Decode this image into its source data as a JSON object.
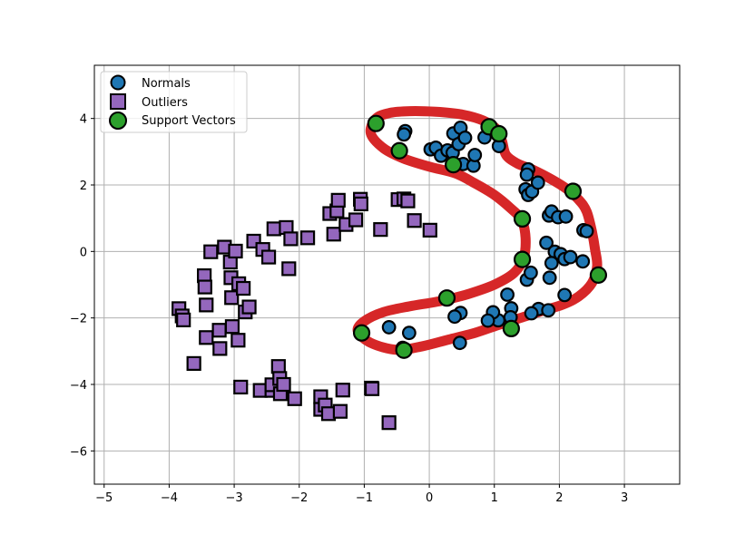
{
  "chart_data": {
    "type": "scatter",
    "title": "",
    "xlabel": "",
    "ylabel": "",
    "xlim": [
      -5.15,
      3.85
    ],
    "ylim": [
      -7.0,
      5.6
    ],
    "xticks": [
      -5,
      -4,
      -3,
      -2,
      -1,
      0,
      1,
      2,
      3
    ],
    "yticks": [
      -6,
      -4,
      -2,
      0,
      2,
      4
    ],
    "xtick_labels": [
      "−5",
      "−4",
      "−3",
      "−2",
      "−1",
      "0",
      "1",
      "2",
      "3"
    ],
    "ytick_labels": [
      "−6",
      "−4",
      "−2",
      "0",
      "2",
      "4"
    ],
    "grid": true,
    "legend": {
      "position": "top-left",
      "entries": [
        "Normals",
        "Outliers",
        "Support Vectors"
      ]
    },
    "colors": {
      "normals": "#1f77b4",
      "outliers": "#9467bd",
      "support_vectors": "#2ca02c",
      "boundary": "#d62728",
      "edge": "#000000",
      "grid": "#b0b0b0"
    },
    "series": [
      {
        "name": "Normals",
        "marker": "circle",
        "points": [
          [
            -0.37,
            3.62
          ],
          [
            -0.39,
            3.52
          ],
          [
            0.02,
            3.07
          ],
          [
            0.1,
            3.12
          ],
          [
            0.18,
            2.88
          ],
          [
            0.28,
            3.04
          ],
          [
            0.36,
            2.97
          ],
          [
            0.37,
            3.55
          ],
          [
            0.45,
            3.23
          ],
          [
            0.48,
            3.72
          ],
          [
            0.55,
            3.42
          ],
          [
            0.52,
            2.63
          ],
          [
            0.68,
            2.58
          ],
          [
            0.7,
            2.9
          ],
          [
            0.85,
            3.43
          ],
          [
            1.07,
            3.17
          ],
          [
            1.52,
            2.47
          ],
          [
            1.5,
            2.31
          ],
          [
            1.48,
            1.87
          ],
          [
            1.52,
            1.7
          ],
          [
            1.58,
            1.8
          ],
          [
            1.67,
            2.07
          ],
          [
            1.8,
            0.26
          ],
          [
            1.84,
            1.08
          ],
          [
            1.88,
            1.2
          ],
          [
            1.93,
            -0.01
          ],
          [
            1.98,
            1.03
          ],
          [
            2.02,
            -0.08
          ],
          [
            2.1,
            1.05
          ],
          [
            2.08,
            -0.23
          ],
          [
            2.17,
            -0.17
          ],
          [
            2.36,
            -0.3
          ],
          [
            2.37,
            0.64
          ],
          [
            2.42,
            0.61
          ],
          [
            1.5,
            -0.85
          ],
          [
            1.56,
            -0.64
          ],
          [
            1.85,
            -0.79
          ],
          [
            1.88,
            -0.35
          ],
          [
            2.08,
            -1.31
          ],
          [
            1.2,
            -1.3
          ],
          [
            1.26,
            -1.71
          ],
          [
            1.68,
            -1.73
          ],
          [
            1.83,
            -1.77
          ],
          [
            1.57,
            -1.86
          ],
          [
            1.25,
            -1.98
          ],
          [
            1.06,
            -2.07
          ],
          [
            0.98,
            -1.83
          ],
          [
            0.9,
            -2.08
          ],
          [
            0.48,
            -1.85
          ],
          [
            0.39,
            -1.96
          ],
          [
            0.47,
            -2.75
          ],
          [
            -0.62,
            -2.28
          ],
          [
            -0.31,
            -2.45
          ],
          [
            -0.41,
            -2.9
          ]
        ]
      },
      {
        "name": "Outliers",
        "marker": "square",
        "points": [
          [
            -3.85,
            -1.72
          ],
          [
            -3.8,
            -1.94
          ],
          [
            -3.78,
            -2.06
          ],
          [
            -3.62,
            -3.37
          ],
          [
            -3.43,
            -1.61
          ],
          [
            -3.43,
            -2.59
          ],
          [
            -3.46,
            -0.73
          ],
          [
            -3.45,
            -1.07
          ],
          [
            -3.36,
            -0.01
          ],
          [
            -3.23,
            -2.37
          ],
          [
            -3.22,
            -2.92
          ],
          [
            -3.15,
            0.13
          ],
          [
            -3.06,
            -0.32
          ],
          [
            -3.05,
            -0.79
          ],
          [
            -3.04,
            -1.39
          ],
          [
            -3.03,
            -2.26
          ],
          [
            -2.98,
            0.01
          ],
          [
            -2.93,
            -0.97
          ],
          [
            -2.94,
            -2.67
          ],
          [
            -2.9,
            -4.08
          ],
          [
            -2.86,
            -1.11
          ],
          [
            -2.83,
            -1.82
          ],
          [
            -2.77,
            -1.67
          ],
          [
            -2.7,
            0.31
          ],
          [
            -2.6,
            -4.18
          ],
          [
            -2.56,
            0.06
          ],
          [
            -2.47,
            -0.17
          ],
          [
            -2.42,
            -4.18
          ],
          [
            -2.42,
            -4.01
          ],
          [
            -2.39,
            0.68
          ],
          [
            -2.32,
            -3.46
          ],
          [
            -2.3,
            -3.82
          ],
          [
            -2.29,
            -4.28
          ],
          [
            -2.24,
            -4.0
          ],
          [
            -2.2,
            0.72
          ],
          [
            -2.16,
            -0.52
          ],
          [
            -2.13,
            0.38
          ],
          [
            -2.07,
            -4.43
          ],
          [
            -1.87,
            0.41
          ],
          [
            -1.67,
            -4.37
          ],
          [
            -1.67,
            -4.75
          ],
          [
            -1.6,
            -4.62
          ],
          [
            -1.55,
            -4.88
          ],
          [
            -1.53,
            1.14
          ],
          [
            -1.47,
            0.52
          ],
          [
            -1.42,
            1.22
          ],
          [
            -1.4,
            1.54
          ],
          [
            -1.37,
            -4.81
          ],
          [
            -1.33,
            -4.17
          ],
          [
            -1.28,
            0.81
          ],
          [
            -1.13,
            0.95
          ],
          [
            -1.06,
            1.57
          ],
          [
            -1.05,
            1.43
          ],
          [
            -0.89,
            -4.11
          ],
          [
            -0.88,
            -4.13
          ],
          [
            -0.75,
            0.66
          ],
          [
            -0.62,
            -5.15
          ],
          [
            -0.48,
            1.56
          ],
          [
            -0.39,
            1.58
          ],
          [
            -0.33,
            1.52
          ],
          [
            -0.23,
            0.93
          ],
          [
            0.01,
            0.64
          ]
        ]
      },
      {
        "name": "Support Vectors",
        "marker": "circle",
        "points": [
          [
            -0.82,
            3.85
          ],
          [
            -0.46,
            3.03
          ],
          [
            0.37,
            2.61
          ],
          [
            0.92,
            3.75
          ],
          [
            1.07,
            3.54
          ],
          [
            2.21,
            1.81
          ],
          [
            1.43,
            0.98
          ],
          [
            1.43,
            -0.24
          ],
          [
            2.6,
            -0.71
          ],
          [
            0.27,
            -1.4
          ],
          [
            1.26,
            -2.32
          ],
          [
            -1.04,
            -2.45
          ],
          [
            -0.39,
            -2.97
          ]
        ]
      }
    ],
    "boundary": [
      [
        -0.82,
        4.0
      ],
      [
        -0.6,
        4.17
      ],
      [
        -0.3,
        4.22
      ],
      [
        0.1,
        4.2
      ],
      [
        0.5,
        4.12
      ],
      [
        0.85,
        3.92
      ],
      [
        1.05,
        3.65
      ],
      [
        1.12,
        3.3
      ],
      [
        1.18,
        2.9
      ],
      [
        1.35,
        2.65
      ],
      [
        1.6,
        2.45
      ],
      [
        1.85,
        2.2
      ],
      [
        2.1,
        1.9
      ],
      [
        2.3,
        1.55
      ],
      [
        2.42,
        1.2
      ],
      [
        2.5,
        0.6
      ],
      [
        2.55,
        0.05
      ],
      [
        2.58,
        -0.45
      ],
      [
        2.5,
        -0.95
      ],
      [
        2.3,
        -1.35
      ],
      [
        2.05,
        -1.6
      ],
      [
        1.75,
        -1.78
      ],
      [
        1.4,
        -2.0
      ],
      [
        1.05,
        -2.22
      ],
      [
        0.7,
        -2.45
      ],
      [
        0.3,
        -2.65
      ],
      [
        -0.1,
        -2.85
      ],
      [
        -0.5,
        -2.96
      ],
      [
        -0.9,
        -2.75
      ],
      [
        -1.1,
        -2.4
      ],
      [
        -1.0,
        -2.1
      ],
      [
        -0.7,
        -1.82
      ],
      [
        -0.3,
        -1.65
      ],
      [
        0.2,
        -1.48
      ],
      [
        0.6,
        -1.28
      ],
      [
        1.0,
        -1.0
      ],
      [
        1.3,
        -0.65
      ],
      [
        1.45,
        -0.2
      ],
      [
        1.48,
        0.4
      ],
      [
        1.42,
        0.95
      ],
      [
        1.25,
        1.3
      ],
      [
        1.0,
        1.7
      ],
      [
        0.7,
        2.05
      ],
      [
        0.4,
        2.35
      ],
      [
        0.0,
        2.55
      ],
      [
        -0.4,
        2.8
      ],
      [
        -0.7,
        3.1
      ],
      [
        -0.9,
        3.55
      ],
      [
        -0.82,
        4.0
      ]
    ]
  }
}
